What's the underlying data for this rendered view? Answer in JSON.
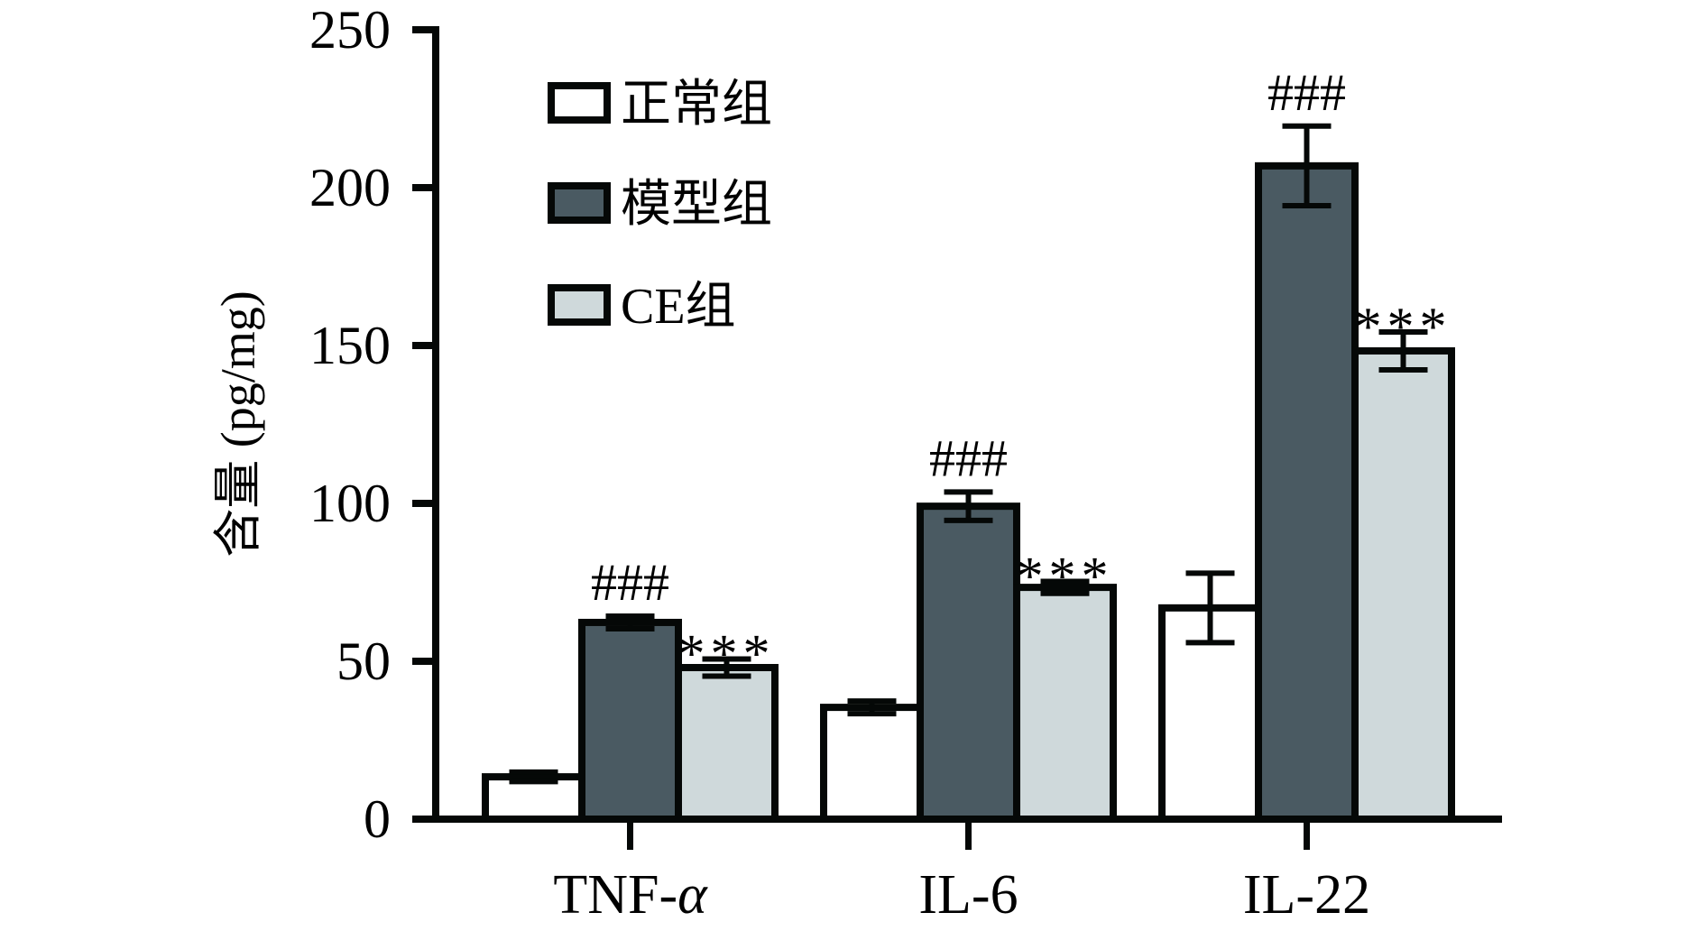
{
  "chart_data": {
    "type": "bar",
    "title": "",
    "xlabel": "",
    "ylabel": "含量 (pg/mg)",
    "ylim": [
      0,
      250
    ],
    "yticks": [
      0,
      50,
      100,
      150,
      200,
      250
    ],
    "grid": false,
    "legend_position": "top-left",
    "categories": [
      "TNF-α",
      "IL-6",
      "IL-22"
    ],
    "series": [
      {
        "name": "正常组",
        "color": "#ffffff",
        "values": [
          13.4,
          35.4,
          66.9
        ],
        "errors": [
          1.5,
          2.0,
          11.0
        ],
        "annotations": [
          "",
          "",
          ""
        ]
      },
      {
        "name": "模型组",
        "color": "#4a5a62",
        "values": [
          62.3,
          99.1,
          206.9
        ],
        "errors": [
          2.0,
          4.5,
          12.6
        ],
        "annotations": [
          "###",
          "###",
          "###"
        ]
      },
      {
        "name": "CE组",
        "color": "#cfd9db",
        "values": [
          48.0,
          73.4,
          148.3
        ],
        "errors": [
          2.7,
          1.9,
          6.0
        ],
        "annotations": [
          "***",
          "***",
          "***"
        ]
      }
    ],
    "border_color": "#050807"
  }
}
